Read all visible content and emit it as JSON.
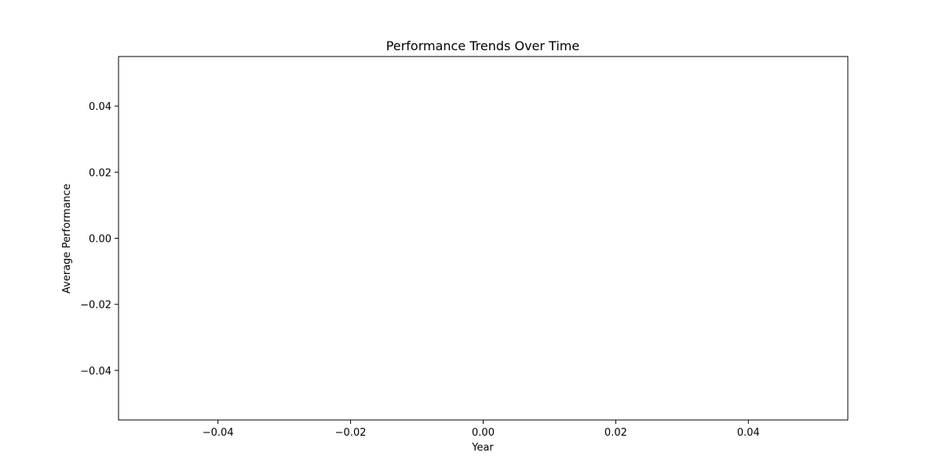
{
  "chart_data": {
    "type": "line",
    "title": "Performance Trends Over Time",
    "xlabel": "Year",
    "ylabel": "Average Performance",
    "xlim": [
      -0.055,
      0.055
    ],
    "ylim": [
      -0.055,
      0.055
    ],
    "x_ticks": [
      -0.04,
      -0.02,
      0.0,
      0.02,
      0.04
    ],
    "y_ticks": [
      -0.04,
      -0.02,
      0.0,
      0.02,
      0.04
    ],
    "x_tick_labels": [
      "−0.04",
      "−0.02",
      "0.00",
      "0.02",
      "0.04"
    ],
    "y_tick_labels": [
      "−0.04",
      "−0.02",
      "0.00",
      "0.02",
      "0.04"
    ],
    "grid": false,
    "legend": null,
    "series": []
  },
  "colors": {
    "axes": "#000000",
    "background": "#ffffff",
    "text": "#000000"
  }
}
